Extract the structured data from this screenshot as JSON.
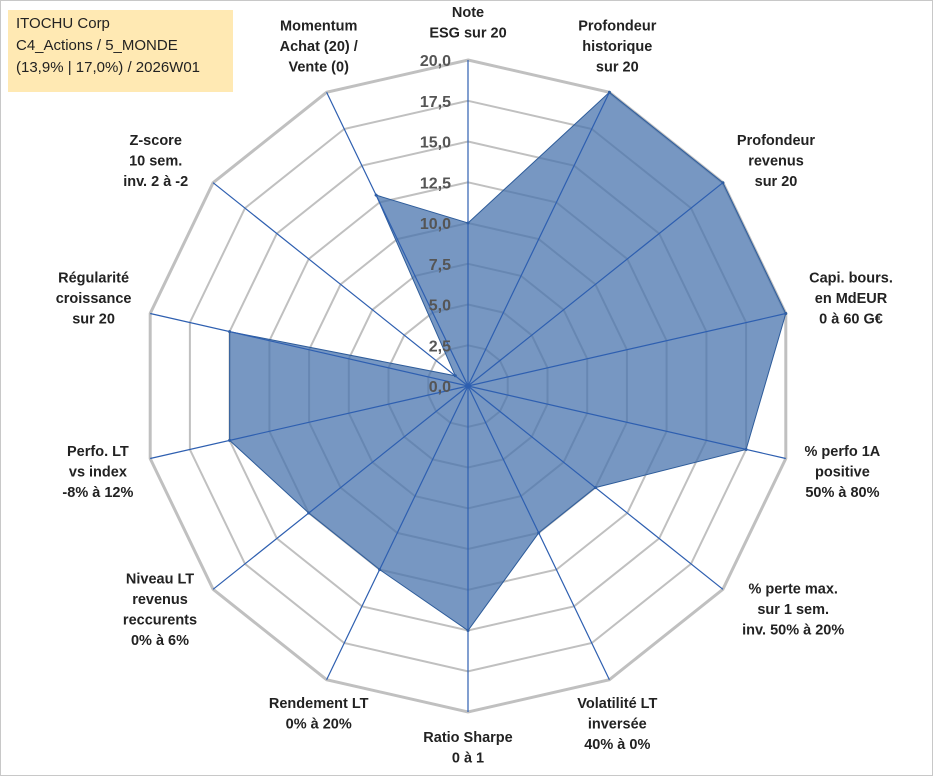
{
  "info": {
    "company": "ITOCHU Corp",
    "portfolio": "C4_Actions / 5_MONDE",
    "stats": "(13,9% | 17,0%) / 2026W01"
  },
  "colors": {
    "fill": "#4a74ad",
    "stroke": "#2e5c9a",
    "grid": "#c0c0c0",
    "spoke": "#2e5fb0"
  },
  "chart_data": {
    "type": "radar",
    "title": "ITOCHU Corp",
    "rmin": 0,
    "rmax": 20,
    "ticks": [
      "0,0",
      "2,5",
      "5,0",
      "7,5",
      "10,0",
      "12,5",
      "15,0",
      "17,5",
      "20,0"
    ],
    "axes": [
      {
        "label": [
          "Note",
          "ESG sur 20"
        ],
        "value": 10
      },
      {
        "label": [
          "Profondeur",
          "historique",
          "sur 20"
        ],
        "value": 20
      },
      {
        "label": [
          "Profondeur",
          "revenus",
          "sur 20"
        ],
        "value": 20
      },
      {
        "label": [
          "Capi. bours.",
          "en MdEUR",
          "0 à 60 G€"
        ],
        "value": 20
      },
      {
        "label": [
          "% perfo 1A",
          "positive",
          "50% à 80%"
        ],
        "value": 17.5
      },
      {
        "label": [
          "% perte max.",
          "sur 1 sem.",
          "inv. 50% à 20%"
        ],
        "value": 10
      },
      {
        "label": [
          "Volatilité LT",
          "inversée",
          "40% à 0%"
        ],
        "value": 10
      },
      {
        "label": [
          "Ratio Sharpe",
          "0 à 1"
        ],
        "value": 15
      },
      {
        "label": [
          "Rendement LT",
          "0% à 20%"
        ],
        "value": 12.5
      },
      {
        "label": [
          "Niveau LT",
          "revenus",
          "reccurents",
          "0% à 6%"
        ],
        "value": 12.5
      },
      {
        "label": [
          "Perfo. LT",
          "vs index",
          "-8% à 12%"
        ],
        "value": 15
      },
      {
        "label": [
          "Régularité",
          "croissance",
          "sur 20"
        ],
        "value": 15
      },
      {
        "label": [
          "Z-score",
          "10 sem.",
          "inv. 2 à -2"
        ],
        "value": 1
      },
      {
        "label": [
          "Momentum",
          "Achat (20) /",
          "Vente (0)"
        ],
        "value": 13
      }
    ]
  }
}
